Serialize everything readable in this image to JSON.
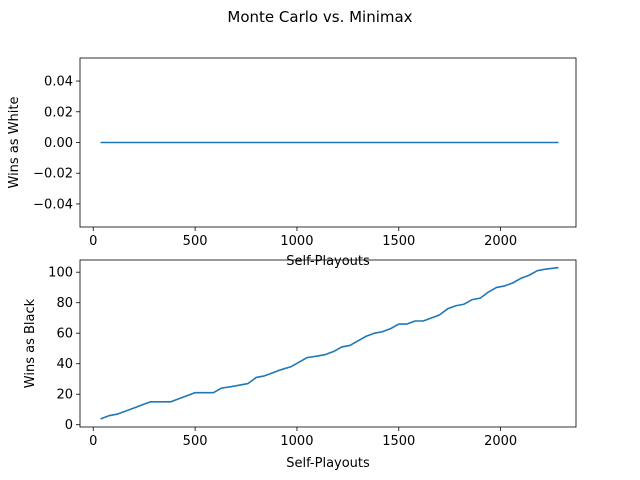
{
  "figure": {
    "title": "Monte Carlo vs. Minimax"
  },
  "chart_data": [
    {
      "type": "line",
      "xlabel": "Self-Playouts",
      "ylabel": "Wins as White",
      "xlim": [
        -65,
        2370
      ],
      "ylim": [
        -0.055,
        0.055
      ],
      "xticks": [
        0,
        500,
        1000,
        1500,
        2000
      ],
      "yticks": [
        -0.04,
        -0.02,
        0.0,
        0.02,
        0.04
      ],
      "ytick_labels": [
        "−0.04",
        "−0.02",
        "0.00",
        "0.02",
        "0.04"
      ],
      "grid": false,
      "series": [
        {
          "color": "#1f77b4",
          "x": [
            40,
            2280
          ],
          "y": [
            0,
            0
          ]
        }
      ]
    },
    {
      "type": "line",
      "xlabel": "Self-Playouts",
      "ylabel": "Wins as Black",
      "xlim": [
        -65,
        2370
      ],
      "ylim": [
        -1.5,
        108
      ],
      "xticks": [
        0,
        500,
        1000,
        1500,
        2000
      ],
      "yticks": [
        0,
        20,
        40,
        60,
        80,
        100
      ],
      "ytick_labels": [
        "0",
        "20",
        "40",
        "60",
        "80",
        "100"
      ],
      "grid": false,
      "series": [
        {
          "color": "#1f77b4",
          "x": [
            40,
            80,
            120,
            160,
            200,
            240,
            280,
            320,
            380,
            420,
            460,
            500,
            540,
            590,
            630,
            680,
            720,
            760,
            800,
            840,
            880,
            920,
            970,
            1010,
            1050,
            1100,
            1140,
            1180,
            1220,
            1260,
            1300,
            1340,
            1380,
            1420,
            1460,
            1500,
            1540,
            1580,
            1620,
            1660,
            1700,
            1740,
            1780,
            1820,
            1860,
            1900,
            1940,
            1980,
            2020,
            2060,
            2100,
            2140,
            2180,
            2220,
            2280
          ],
          "y": [
            4,
            6,
            7,
            9,
            11,
            13,
            15,
            15,
            15,
            17,
            19,
            21,
            21,
            21,
            24,
            25,
            26,
            27,
            31,
            32,
            34,
            36,
            38,
            41,
            44,
            45,
            46,
            48,
            51,
            52,
            55,
            58,
            60,
            61,
            63,
            66,
            66,
            68,
            68,
            70,
            72,
            76,
            78,
            79,
            82,
            83,
            87,
            90,
            91,
            93,
            96,
            98,
            101,
            102,
            103
          ]
        }
      ]
    }
  ]
}
